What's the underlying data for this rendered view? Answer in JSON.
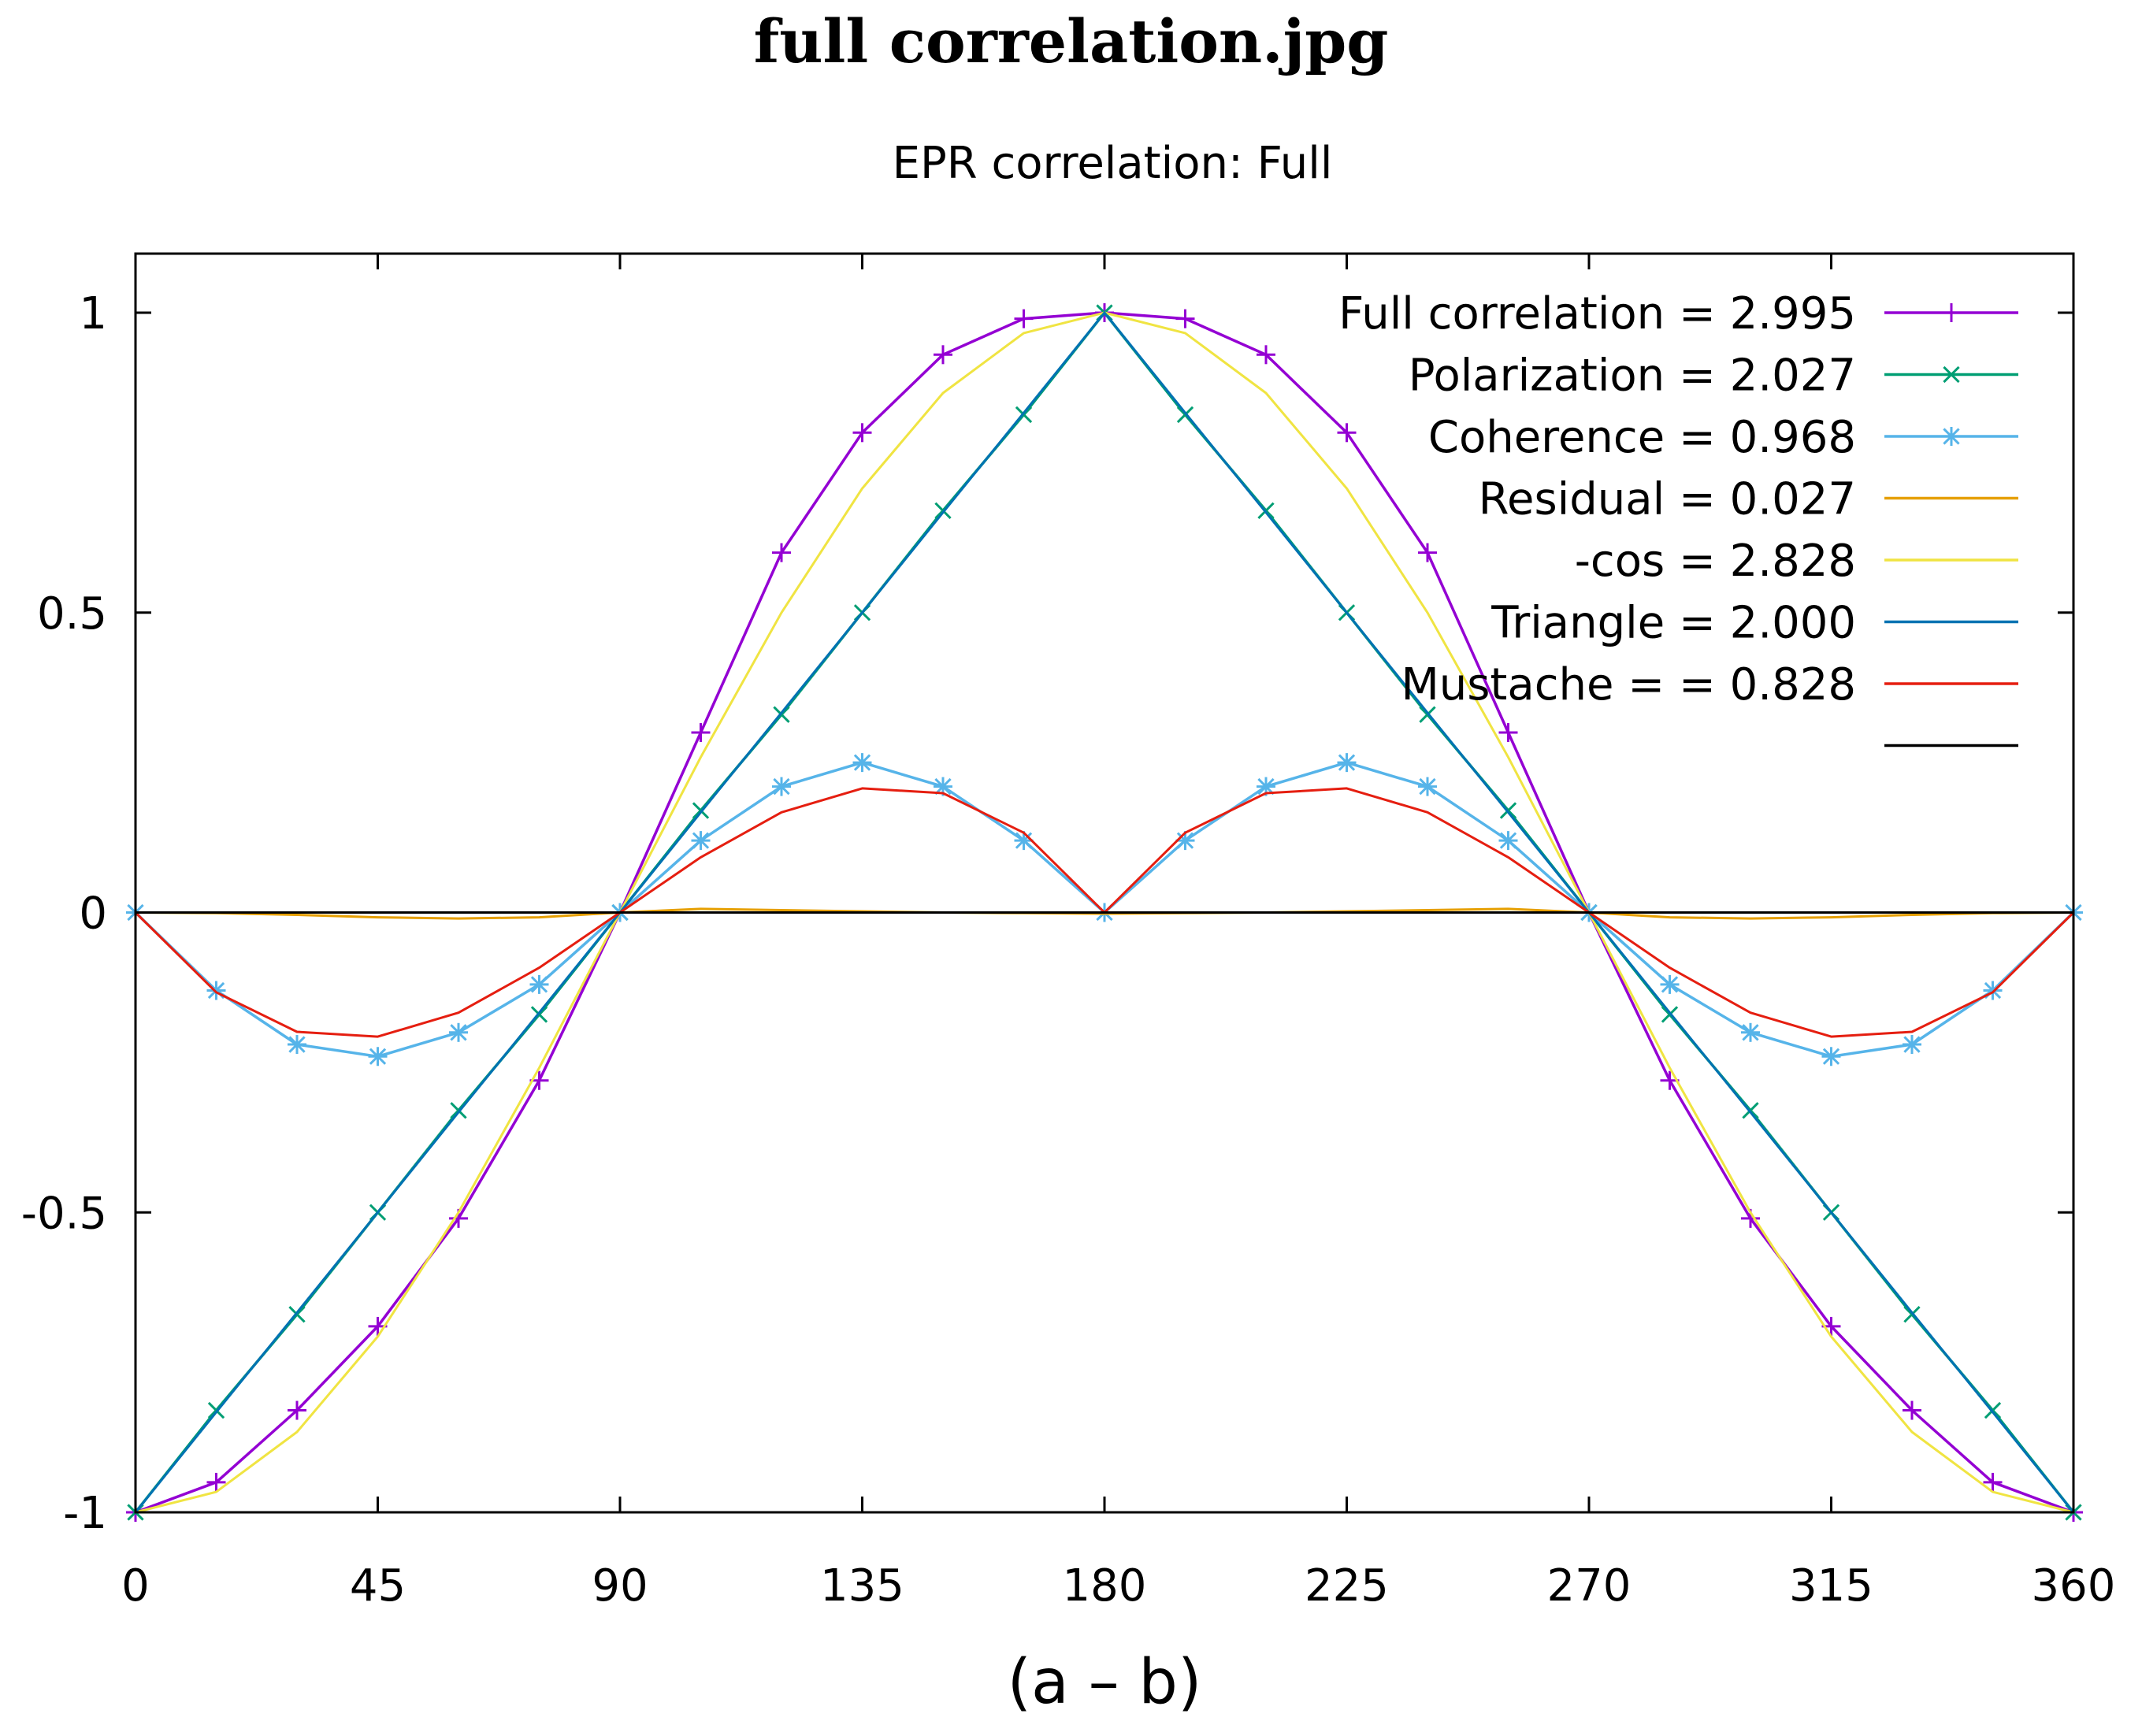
{
  "page_title": "full correlation.jpg",
  "chart_data": {
    "type": "line",
    "title": "EPR correlation: Full",
    "xlabel": "(a – b)",
    "ylabel": "",
    "xlim": [
      0,
      360
    ],
    "ylim": [
      -1,
      1
    ],
    "xticks": [
      0,
      45,
      90,
      135,
      180,
      225,
      270,
      315,
      360
    ],
    "xtick_labels": [
      "0",
      "45",
      "90",
      "135",
      "180",
      "225",
      "270",
      "315",
      "360"
    ],
    "yticks": [
      -1,
      -0.5,
      0,
      0.5,
      1
    ],
    "ytick_labels": [
      "-1",
      "-0.5",
      "0",
      "0.5",
      "1"
    ],
    "grid": false,
    "legend_position": "top-right",
    "x": [
      0,
      15,
      30,
      45,
      60,
      75,
      90,
      105,
      120,
      135,
      150,
      165,
      180,
      195,
      210,
      225,
      240,
      255,
      270,
      285,
      300,
      315,
      330,
      345,
      360
    ],
    "series": [
      {
        "name": "Full correlation = 2.995",
        "color": "#9400d3",
        "marker": "plus",
        "values": [
          -1,
          -0.95,
          -0.83,
          -0.69,
          -0.51,
          -0.28,
          0,
          0.3,
          0.6,
          0.8,
          0.93,
          0.99,
          1,
          0.99,
          0.93,
          0.8,
          0.6,
          0.3,
          0,
          -0.28,
          -0.51,
          -0.69,
          -0.83,
          -0.95,
          -1
        ]
      },
      {
        "name": "Polarization = 2.027",
        "color": "#009e73",
        "marker": "cross",
        "values": [
          -1,
          -0.83,
          -0.67,
          -0.5,
          -0.33,
          -0.17,
          0,
          0.17,
          0.33,
          0.5,
          0.67,
          0.83,
          1,
          0.83,
          0.67,
          0.5,
          0.33,
          0.17,
          0,
          -0.17,
          -0.33,
          -0.5,
          -0.67,
          -0.83,
          -1
        ]
      },
      {
        "name": "Coherence = 0.968",
        "color": "#56b4e9",
        "marker": "star",
        "values": [
          0,
          -0.13,
          -0.22,
          -0.24,
          -0.2,
          -0.12,
          0,
          0.12,
          0.21,
          0.25,
          0.21,
          0.12,
          0,
          0.12,
          0.21,
          0.25,
          0.21,
          0.12,
          0,
          -0.12,
          -0.2,
          -0.24,
          -0.22,
          -0.13,
          0
        ]
      },
      {
        "name": "Residual = 0.027",
        "color": "#e69f00",
        "marker": "none",
        "values": [
          0,
          -0.001,
          -0.004,
          -0.008,
          -0.01,
          -0.008,
          0,
          0.006,
          0.004,
          0.002,
          0,
          -0.001,
          -0.002,
          -0.001,
          0,
          0.002,
          0.004,
          0.006,
          0,
          -0.008,
          -0.01,
          -0.008,
          -0.004,
          -0.001,
          0
        ]
      },
      {
        "name": "-cos = 2.828",
        "color": "#f0e442",
        "marker": "none",
        "values": [
          -1,
          -0.966,
          -0.866,
          -0.707,
          -0.5,
          -0.259,
          0,
          0.259,
          0.5,
          0.707,
          0.866,
          0.966,
          1,
          0.966,
          0.866,
          0.707,
          0.5,
          0.259,
          0,
          -0.259,
          -0.5,
          -0.707,
          -0.866,
          -0.966,
          -1
        ]
      },
      {
        "name": "Triangle = 2.000",
        "color": "#0072b2",
        "marker": "none",
        "values": [
          -1,
          -0.833,
          -0.667,
          -0.5,
          -0.333,
          -0.167,
          0,
          0.167,
          0.333,
          0.5,
          0.667,
          0.833,
          1,
          0.833,
          0.667,
          0.5,
          0.333,
          0.167,
          0,
          -0.167,
          -0.333,
          -0.5,
          -0.667,
          -0.833,
          -1
        ]
      },
      {
        "name": "Mustache = = 0.828",
        "color": "#e51e10",
        "marker": "none",
        "values": [
          0,
          -0.133,
          -0.199,
          -0.207,
          -0.167,
          -0.092,
          0,
          0.092,
          0.167,
          0.207,
          0.199,
          0.133,
          0,
          0.133,
          0.199,
          0.207,
          0.167,
          0.092,
          0,
          -0.092,
          -0.167,
          -0.207,
          -0.199,
          -0.133,
          0
        ]
      },
      {
        "name": "",
        "color": "#000000",
        "marker": "none",
        "values": [
          0,
          0,
          0,
          0,
          0,
          0,
          0,
          0,
          0,
          0,
          0,
          0,
          0,
          0,
          0,
          0,
          0,
          0,
          0,
          0,
          0,
          0,
          0,
          0,
          0
        ]
      }
    ]
  }
}
